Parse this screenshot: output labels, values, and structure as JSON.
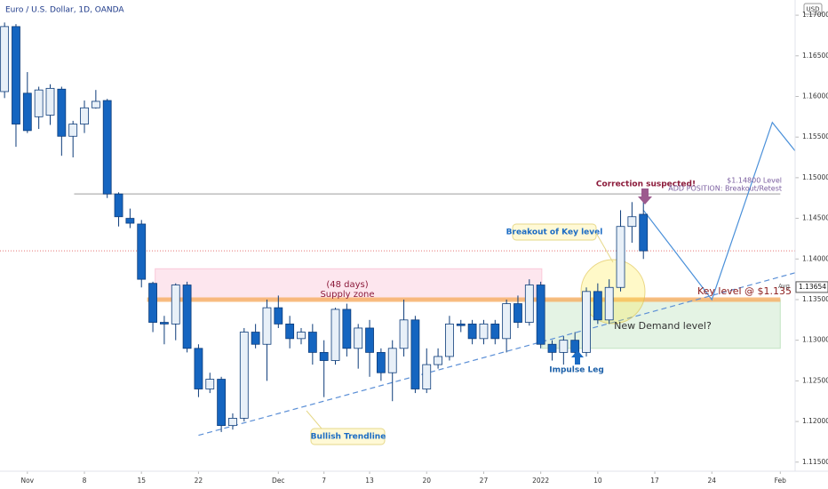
{
  "chart_data": {
    "type": "candlestick",
    "title": "Euro / U.S. Dollar, 1D, OANDA",
    "currency": "USD",
    "avg_label": "Avg",
    "up_color": "#e8f0f8",
    "down_color": "#1565c0",
    "border_color": "#0d3c7a",
    "x": [
      0,
      1,
      2,
      3,
      4,
      5,
      6,
      7,
      8,
      9,
      10,
      11,
      12,
      13,
      14,
      15,
      16,
      17,
      18,
      19,
      20,
      21,
      22,
      23,
      24,
      25,
      26,
      27,
      28,
      29,
      30,
      31,
      32,
      33,
      34,
      35,
      36,
      37,
      38,
      39,
      40,
      41,
      42,
      43,
      44,
      45,
      46,
      47,
      48,
      49,
      50,
      51,
      52,
      53,
      54,
      55,
      56
    ],
    "open": [
      1.1606,
      1.1686,
      1.1604,
      1.1575,
      1.1577,
      1.1609,
      1.1551,
      1.1566,
      1.1586,
      1.1595,
      1.148,
      1.145,
      1.1443,
      1.137,
      1.1322,
      1.132,
      1.1368,
      1.129,
      1.124,
      1.1252,
      1.1195,
      1.1204,
      1.131,
      1.1295,
      1.134,
      1.132,
      1.1302,
      1.131,
      1.1285,
      1.1275,
      1.1338,
      1.129,
      1.1315,
      1.1285,
      1.126,
      1.129,
      1.1325,
      1.124,
      1.127,
      1.128,
      1.132,
      1.132,
      1.1302,
      1.132,
      1.1302,
      1.1345,
      1.1322,
      1.1368,
      1.1295,
      1.1285,
      1.13,
      1.1285,
      1.136,
      1.1325,
      1.1365,
      1.144,
      1.1455
    ],
    "high": [
      1.1691,
      1.1689,
      1.163,
      1.1612,
      1.1615,
      1.1612,
      1.157,
      1.1595,
      1.1608,
      1.1597,
      1.1482,
      1.1462,
      1.1448,
      1.1372,
      1.133,
      1.137,
      1.1372,
      1.1295,
      1.126,
      1.1255,
      1.121,
      1.1315,
      1.132,
      1.135,
      1.1355,
      1.133,
      1.1315,
      1.132,
      1.13,
      1.134,
      1.1345,
      1.132,
      1.1325,
      1.129,
      1.13,
      1.135,
      1.133,
      1.129,
      1.129,
      1.133,
      1.1325,
      1.1325,
      1.1325,
      1.1325,
      1.135,
      1.1355,
      1.1375,
      1.1372,
      1.13,
      1.1305,
      1.131,
      1.1365,
      1.137,
      1.1375,
      1.146,
      1.147,
      1.148
    ],
    "low": [
      1.1598,
      1.1538,
      1.1555,
      1.156,
      1.1565,
      1.1527,
      1.1525,
      1.1555,
      1.1585,
      1.1475,
      1.144,
      1.1438,
      1.1365,
      1.131,
      1.1295,
      1.13,
      1.1285,
      1.123,
      1.1235,
      1.1187,
      1.119,
      1.12,
      1.129,
      1.125,
      1.1315,
      1.129,
      1.1295,
      1.127,
      1.123,
      1.127,
      1.128,
      1.1265,
      1.1255,
      1.125,
      1.1225,
      1.128,
      1.1235,
      1.1235,
      1.1265,
      1.1275,
      1.131,
      1.1295,
      1.1295,
      1.1295,
      1.1285,
      1.1315,
      1.1318,
      1.129,
      1.1275,
      1.127,
      1.128,
      1.128,
      1.132,
      1.132,
      1.136,
      1.142,
      1.14
    ],
    "close": [
      1.1686,
      1.1566,
      1.1558,
      1.1608,
      1.161,
      1.1551,
      1.1566,
      1.1586,
      1.1594,
      1.148,
      1.1452,
      1.1444,
      1.1375,
      1.1322,
      1.132,
      1.1368,
      1.129,
      1.124,
      1.1252,
      1.1195,
      1.1204,
      1.131,
      1.1295,
      1.134,
      1.132,
      1.1302,
      1.131,
      1.1285,
      1.1275,
      1.1338,
      1.129,
      1.1315,
      1.1285,
      1.126,
      1.129,
      1.1325,
      1.124,
      1.127,
      1.128,
      1.132,
      1.1318,
      1.1302,
      1.132,
      1.1302,
      1.1345,
      1.1322,
      1.1368,
      1.1295,
      1.1285,
      1.13,
      1.1285,
      1.136,
      1.1325,
      1.1365,
      1.144,
      1.1452,
      1.141
    ],
    "xlim": [
      -0.4,
      69.3
    ],
    "ylim": [
      1.11388,
      1.17187
    ],
    "xticks": [
      {
        "value": 2,
        "label": "Nov"
      },
      {
        "value": 7,
        "label": "8"
      },
      {
        "value": 12,
        "label": "15"
      },
      {
        "value": 17,
        "label": "22"
      },
      {
        "value": 24,
        "label": "Dec"
      },
      {
        "value": 28,
        "label": "7"
      },
      {
        "value": 32,
        "label": "13"
      },
      {
        "value": 37,
        "label": "20"
      },
      {
        "value": 42,
        "label": "27"
      },
      {
        "value": 47,
        "label": "2022"
      },
      {
        "value": 52,
        "label": "10"
      },
      {
        "value": 57,
        "label": "17"
      },
      {
        "value": 62,
        "label": "24"
      },
      {
        "value": 68,
        "label": "Feb"
      }
    ],
    "yticks": [
      {
        "value": 1.115,
        "label": "1.11500"
      },
      {
        "value": 1.12,
        "label": "1.12000"
      },
      {
        "value": 1.125,
        "label": "1.12500"
      },
      {
        "value": 1.13,
        "label": "1.13000"
      },
      {
        "value": 1.135,
        "label": "1.13500"
      },
      {
        "value": 1.14,
        "label": "1.14000"
      },
      {
        "value": 1.145,
        "label": "1.14500"
      },
      {
        "value": 1.15,
        "label": "1.15000"
      },
      {
        "value": 1.155,
        "label": "1.15500"
      },
      {
        "value": 1.16,
        "label": "1.16000"
      },
      {
        "value": 1.165,
        "label": "1.16500"
      },
      {
        "value": 1.17,
        "label": "1.17000"
      }
    ],
    "price_marker": {
      "value": 1.13654,
      "label": "1.13654"
    },
    "resistance_level": 1.148,
    "key_level": 1.135,
    "last_price_line": 1.141,
    "supply_zone": [
      1.135,
      1.1388
    ],
    "demand_zone": [
      1.129,
      1.135
    ],
    "trendline": {
      "x": [
        17,
        69.3
      ],
      "y": [
        1.1183,
        1.1383
      ]
    },
    "projection": {
      "x": [
        56,
        62,
        67.3,
        69.3
      ],
      "y": [
        1.146,
        1.135,
        1.1568,
        1.1533
      ]
    },
    "annotations": {
      "correction": "Correction suspected!",
      "level": "$1.14800 Level",
      "add_position": "ADD POSITION: Breakout/Retest",
      "breakout": "Breakout of Key level",
      "days": "(48 days)",
      "supply": "Supply zone",
      "key": "Key level @ $1.135",
      "demand": "New Demand level?",
      "impulse": "Impulse Leg",
      "trend": "Bullish Trendline"
    }
  }
}
